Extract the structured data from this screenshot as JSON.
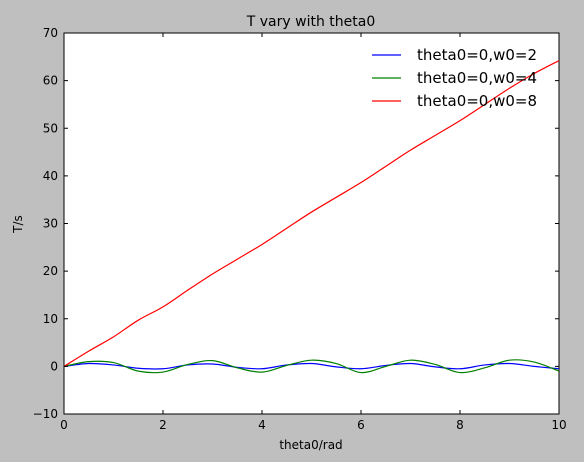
{
  "chart_data": {
    "type": "line",
    "title": "T vary with theta0",
    "xlabel": "theta0/rad",
    "ylabel": "T/s",
    "xlim": [
      0,
      10
    ],
    "ylim": [
      -10,
      70
    ],
    "xticks": [
      0,
      2,
      4,
      6,
      8,
      10
    ],
    "yticks": [
      -10,
      0,
      10,
      20,
      30,
      40,
      50,
      60,
      70
    ],
    "grid": false,
    "legend_position": "top-right",
    "x": [
      0,
      0.5,
      1,
      1.5,
      2,
      2.5,
      3,
      3.5,
      4,
      4.5,
      5,
      5.5,
      6,
      6.5,
      7,
      7.5,
      8,
      8.5,
      9,
      9.5,
      10
    ],
    "series": [
      {
        "name": "theta0=0,w0=2",
        "color": "#0000ff",
        "values": [
          0.0,
          0.6,
          0.3,
          -0.4,
          -0.5,
          0.3,
          0.5,
          -0.2,
          -0.5,
          0.3,
          0.6,
          -0.1,
          -0.5,
          0.2,
          0.6,
          -0.1,
          -0.5,
          0.3,
          0.6,
          0.0,
          -0.5
        ]
      },
      {
        "name": "theta0=0,w0=4",
        "color": "#008000",
        "values": [
          0.0,
          1.0,
          0.8,
          -1.0,
          -1.2,
          0.4,
          1.2,
          -0.3,
          -1.2,
          0.2,
          1.3,
          0.6,
          -1.3,
          0.0,
          1.3,
          0.4,
          -1.3,
          -0.3,
          1.3,
          0.9,
          -1.0
        ]
      },
      {
        "name": "theta0=0,w0=8",
        "color": "#ff0000",
        "values": [
          0.0,
          3.2,
          6.2,
          9.7,
          12.5,
          16.0,
          19.4,
          22.5,
          25.6,
          29.0,
          32.4,
          35.5,
          38.6,
          42.0,
          45.4,
          48.5,
          51.6,
          55.0,
          58.4,
          61.5,
          64.2
        ]
      }
    ]
  }
}
